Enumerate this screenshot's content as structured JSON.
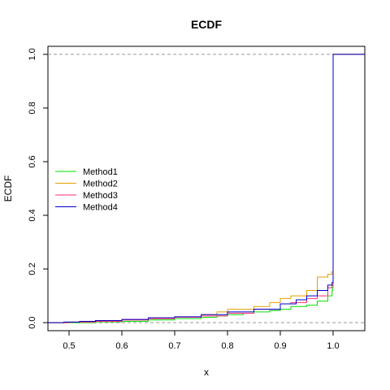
{
  "chart_data": {
    "type": "line",
    "step": true,
    "title": "ECDF",
    "xlabel": "x",
    "ylabel": "ECDF",
    "xlim": [
      0.46,
      1.06
    ],
    "ylim": [
      -0.03,
      1.03
    ],
    "xticks": [
      0.5,
      0.6,
      0.7,
      0.8,
      0.9,
      1.0
    ],
    "xtick_labels": [
      "0.5",
      "0.6",
      "0.7",
      "0.8",
      "0.9",
      "1.0"
    ],
    "yticks": [
      0.0,
      0.2,
      0.4,
      0.6,
      0.8,
      1.0
    ],
    "ytick_labels": [
      "0.0",
      "0.2",
      "0.4",
      "0.6",
      "0.8",
      "1.0"
    ],
    "reference_lines": [
      0,
      1
    ],
    "grid": false,
    "legend_position": "left",
    "series": [
      {
        "name": "Method1",
        "color": "#00e000",
        "x": [
          0.46,
          0.55,
          0.6,
          0.65,
          0.7,
          0.75,
          0.78,
          0.8,
          0.83,
          0.85,
          0.88,
          0.9,
          0.92,
          0.95,
          0.97,
          0.99,
          0.998,
          0.999,
          1.0,
          1.06
        ],
        "y": [
          0.0,
          0.003,
          0.005,
          0.01,
          0.015,
          0.02,
          0.025,
          0.03,
          0.035,
          0.04,
          0.045,
          0.05,
          0.06,
          0.065,
          0.08,
          0.1,
          0.12,
          0.13,
          1.0,
          1.0
        ]
      },
      {
        "name": "Method2",
        "color": "#e69f00",
        "x": [
          0.46,
          0.5,
          0.55,
          0.6,
          0.65,
          0.7,
          0.75,
          0.78,
          0.8,
          0.85,
          0.88,
          0.9,
          0.92,
          0.95,
          0.97,
          0.99,
          0.998,
          1.0,
          1.06
        ],
        "y": [
          0.0,
          0.002,
          0.005,
          0.01,
          0.015,
          0.02,
          0.03,
          0.04,
          0.05,
          0.06,
          0.075,
          0.09,
          0.1,
          0.12,
          0.17,
          0.18,
          0.19,
          1.0,
          1.0
        ]
      },
      {
        "name": "Method3",
        "color": "#ff3070",
        "x": [
          0.46,
          0.5,
          0.55,
          0.6,
          0.65,
          0.7,
          0.75,
          0.8,
          0.85,
          0.9,
          0.92,
          0.95,
          0.97,
          0.99,
          0.998,
          1.0,
          1.06
        ],
        "y": [
          0.0,
          0.002,
          0.005,
          0.01,
          0.015,
          0.02,
          0.025,
          0.035,
          0.05,
          0.07,
          0.075,
          0.09,
          0.1,
          0.13,
          0.14,
          1.0,
          1.0
        ]
      },
      {
        "name": "Method4",
        "color": "#0000cc",
        "x": [
          0.46,
          0.49,
          0.52,
          0.55,
          0.6,
          0.65,
          0.7,
          0.75,
          0.8,
          0.85,
          0.9,
          0.93,
          0.95,
          0.97,
          0.99,
          0.998,
          1.0,
          1.06
        ],
        "y": [
          0.0,
          0.002,
          0.005,
          0.008,
          0.012,
          0.018,
          0.022,
          0.03,
          0.04,
          0.05,
          0.07,
          0.085,
          0.1,
          0.12,
          0.14,
          0.15,
          1.0,
          1.0
        ]
      }
    ]
  }
}
